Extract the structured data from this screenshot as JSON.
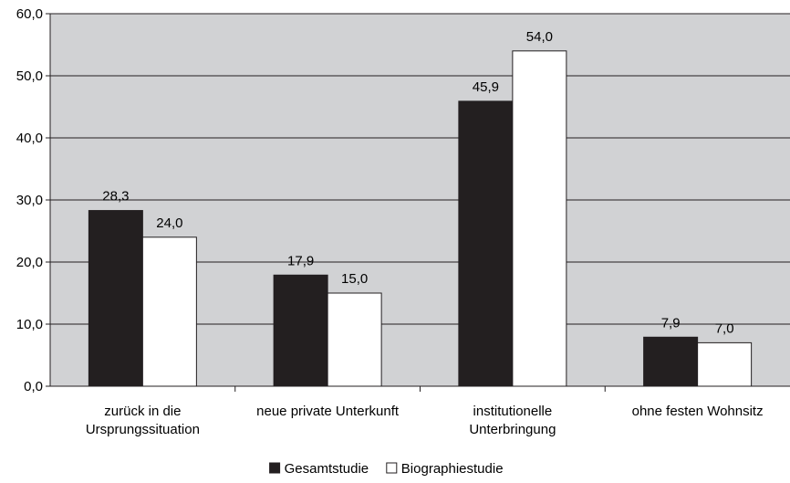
{
  "chart_data": {
    "type": "bar",
    "title": "",
    "xlabel": "",
    "ylabel": "",
    "categories": [
      [
        "zurück in die",
        "Ursprungssituation"
      ],
      [
        "neue private Unterkunft"
      ],
      [
        "institutionelle",
        "Unterbringung"
      ],
      [
        "ohne festen Wohnsitz"
      ]
    ],
    "series": [
      {
        "name": "Gesamtstudie",
        "values": [
          28.3,
          17.9,
          45.9,
          7.9
        ],
        "value_labels": [
          "28,3",
          "17,9",
          "45,9",
          "7,9"
        ],
        "color": "#231f20"
      },
      {
        "name": "Biographiestudie",
        "values": [
          24.0,
          15.0,
          54.0,
          7.0
        ],
        "value_labels": [
          "24,0",
          "15,0",
          "54,0",
          "7,0"
        ],
        "color": "#ffffff"
      }
    ],
    "ylim": [
      0,
      60
    ],
    "yticks": [
      0,
      10,
      20,
      30,
      40,
      50,
      60
    ],
    "ytick_labels": [
      "0,0",
      "10,0",
      "20,0",
      "30,0",
      "40,0",
      "50,0",
      "60,0"
    ],
    "grid": true,
    "plot_background": "#d1d2d4",
    "legend_position": "bottom-center"
  }
}
